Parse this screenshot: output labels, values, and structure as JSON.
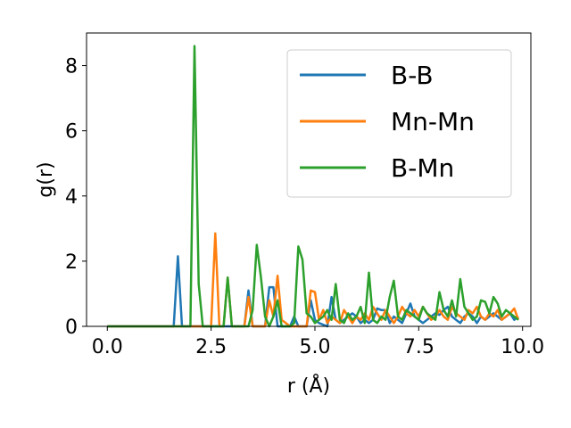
{
  "chart_data": {
    "type": "line",
    "xlabel": "r (Å)",
    "ylabel": "g(r)",
    "xlim": [
      -0.5,
      10.2
    ],
    "ylim": [
      0,
      9
    ],
    "xticks": [
      0.0,
      2.5,
      5.0,
      7.5,
      10.0
    ],
    "xtick_labels": [
      "0.0",
      "2.5",
      "5.0",
      "7.5",
      "10.0"
    ],
    "yticks": [
      0,
      2,
      4,
      6,
      8
    ],
    "ytick_labels": [
      "0",
      "2",
      "4",
      "6",
      "8"
    ],
    "grid": false,
    "legend_position": "top-right",
    "colors": {
      "B-B": "#1f77b4",
      "Mn-Mn": "#ff7f0e",
      "B-Mn": "#2ca02c"
    },
    "series": [
      {
        "name": "B-B",
        "color": "#1f77b4",
        "x": [
          0.0,
          1.6,
          1.7,
          1.8,
          3.3,
          3.4,
          3.5,
          3.8,
          3.9,
          4.0,
          4.1,
          4.2,
          4.4,
          4.5,
          4.6,
          4.8,
          4.9,
          5.0,
          5.1,
          5.3,
          5.4,
          5.5,
          5.6,
          5.8,
          5.9,
          6.0,
          6.1,
          6.2,
          6.3,
          6.4,
          6.5,
          6.6,
          6.7,
          6.8,
          6.9,
          7.0,
          7.1,
          7.2,
          7.3,
          7.4,
          7.5,
          7.6,
          7.7,
          7.8,
          7.9,
          8.0,
          8.1,
          8.2,
          8.3,
          8.4,
          8.5,
          8.6,
          8.7,
          8.8,
          8.9,
          9.0,
          9.1,
          9.2,
          9.3,
          9.4,
          9.5,
          9.6,
          9.7,
          9.8,
          9.9
        ],
        "y": [
          0,
          0,
          2.15,
          0,
          0,
          1.1,
          0,
          0,
          1.2,
          1.2,
          0,
          0,
          0,
          0.3,
          0,
          0,
          0.8,
          0.2,
          0.1,
          0,
          0.9,
          0.2,
          0.1,
          0.3,
          0.4,
          0.3,
          0.1,
          0.2,
          0.1,
          0.2,
          0.55,
          0.5,
          0.5,
          0.1,
          0.3,
          0.2,
          0.1,
          0.4,
          0.7,
          0.3,
          0.2,
          0.1,
          0.2,
          0.3,
          0.4,
          0.35,
          0.5,
          0.6,
          0.3,
          0.2,
          0.1,
          0.3,
          0.4,
          0.3,
          0.1,
          0.3,
          0.2,
          0.3,
          0.4,
          0.3,
          0.2,
          0.3,
          0.4,
          0.2,
          0.3
        ]
      },
      {
        "name": "Mn-Mn",
        "color": "#ff7f0e",
        "x": [
          0.0,
          2.5,
          2.6,
          2.7,
          2.8,
          2.9,
          3.0,
          3.3,
          3.4,
          3.5,
          3.8,
          3.9,
          4.0,
          4.1,
          4.2,
          4.4,
          4.6,
          4.8,
          4.9,
          5.0,
          5.1,
          5.2,
          5.3,
          5.4,
          5.5,
          5.6,
          5.7,
          5.8,
          5.9,
          6.0,
          6.1,
          6.2,
          6.3,
          6.4,
          6.5,
          6.6,
          6.7,
          6.8,
          6.9,
          7.0,
          7.1,
          7.2,
          7.3,
          7.4,
          7.5,
          7.6,
          7.7,
          7.8,
          7.9,
          8.0,
          8.1,
          8.2,
          8.3,
          8.4,
          8.5,
          8.6,
          8.7,
          8.8,
          8.9,
          9.0,
          9.1,
          9.2,
          9.3,
          9.4,
          9.5,
          9.6,
          9.7,
          9.8,
          9.9
        ],
        "y": [
          0,
          0,
          2.85,
          0,
          0,
          1.5,
          0,
          0,
          0.9,
          0,
          0,
          0.8,
          0.3,
          1.55,
          0.2,
          0,
          0,
          0,
          1.1,
          1.05,
          0.2,
          0.5,
          0.1,
          0.3,
          0.2,
          0.1,
          0.5,
          0.3,
          0.1,
          0.3,
          0.2,
          0.4,
          0.2,
          0.6,
          0.4,
          0.2,
          0.5,
          0.3,
          0.1,
          0.3,
          0.6,
          0.4,
          0.3,
          0.5,
          0.3,
          0.6,
          0.4,
          0.2,
          0.3,
          0.5,
          0.3,
          0.2,
          0.6,
          0.4,
          0.3,
          0.2,
          0.5,
          0.4,
          0.6,
          0.3,
          0.2,
          0.4,
          0.3,
          0.5,
          0.2,
          0.3,
          0.4,
          0.55,
          0.2
        ]
      },
      {
        "name": "B-Mn",
        "color": "#2ca02c",
        "x": [
          0.0,
          1.9,
          2.0,
          2.1,
          2.2,
          2.3,
          2.4,
          2.8,
          2.9,
          3.0,
          3.4,
          3.5,
          3.6,
          3.7,
          3.8,
          3.9,
          4.0,
          4.1,
          4.2,
          4.4,
          4.5,
          4.6,
          4.7,
          4.8,
          4.9,
          5.0,
          5.1,
          5.2,
          5.3,
          5.4,
          5.5,
          5.6,
          5.7,
          5.8,
          5.9,
          6.0,
          6.1,
          6.2,
          6.3,
          6.4,
          6.5,
          6.6,
          6.7,
          6.8,
          6.9,
          7.0,
          7.1,
          7.2,
          7.3,
          7.4,
          7.5,
          7.6,
          7.7,
          7.8,
          7.9,
          8.0,
          8.1,
          8.2,
          8.3,
          8.4,
          8.5,
          8.6,
          8.7,
          8.8,
          8.9,
          9.0,
          9.1,
          9.2,
          9.3,
          9.4,
          9.5,
          9.6,
          9.7,
          9.8,
          9.9
        ],
        "y": [
          0,
          0,
          0,
          8.6,
          1.3,
          0,
          0,
          0,
          1.5,
          0,
          0,
          0.5,
          2.5,
          1.5,
          0.3,
          0,
          0.3,
          0.8,
          0,
          0,
          0.1,
          2.45,
          2.05,
          0.4,
          0.3,
          0.1,
          0.2,
          0.3,
          0.5,
          0.2,
          1.3,
          0.2,
          0.1,
          0.4,
          0.2,
          0.3,
          0.6,
          0.1,
          1.65,
          0.2,
          0.1,
          0.3,
          0.2,
          0.9,
          1.4,
          0.3,
          0.2,
          0.5,
          0.4,
          0.3,
          0.2,
          0.6,
          0.4,
          0.3,
          0.2,
          1.05,
          0.5,
          0.3,
          0.8,
          0.3,
          1.45,
          0.6,
          0.4,
          0.2,
          0.3,
          0.8,
          0.75,
          0.4,
          0.9,
          0.7,
          0.3,
          0.5,
          0.4,
          0.3,
          0.2
        ]
      }
    ]
  }
}
